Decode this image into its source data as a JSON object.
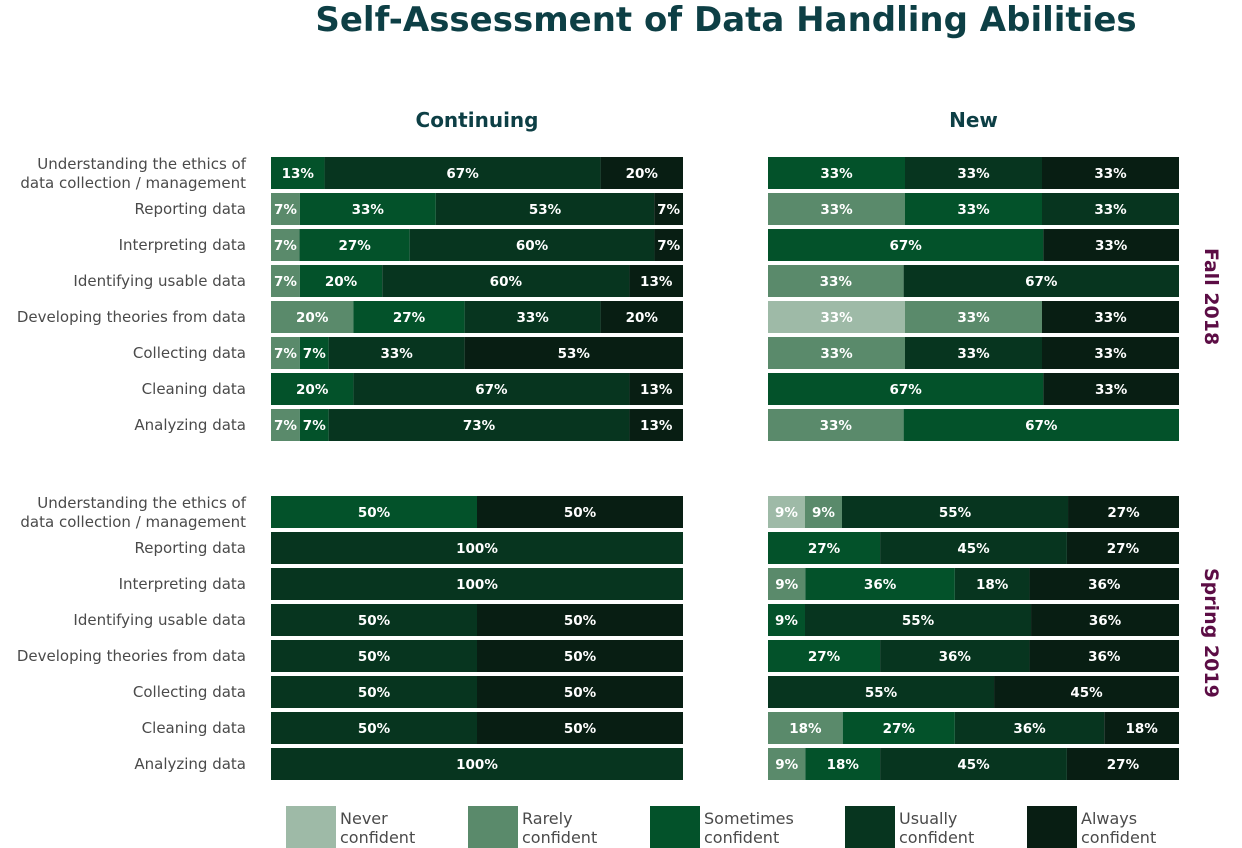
{
  "title": "Self-Assessment of Data Handling Abilities",
  "columns": [
    "Continuing",
    "New"
  ],
  "periods": [
    "Fall 2018",
    "Spring 2019"
  ],
  "legend": [
    {
      "label": "Never\nconfident",
      "color": "#9ebaa7"
    },
    {
      "label": "Rarely\nconfident",
      "color": "#5a8a6b"
    },
    {
      "label": "Sometimes\nconfident",
      "color": "#03522a"
    },
    {
      "label": "Usually\nconfident",
      "color": "#07351f"
    },
    {
      "label": "Always\nconfident",
      "color": "#081e13"
    }
  ],
  "chart_data": {
    "type": "bar",
    "stacked": true,
    "orientation": "horizontal",
    "categories": [
      "Understanding the ethics of\ndata collection / management",
      "Reporting data",
      "Interpreting data",
      "Identifying usable data",
      "Developing theories from data",
      "Collecting data",
      "Cleaning data",
      "Analyzing data"
    ],
    "series_names": [
      "Never confident",
      "Rarely confident",
      "Sometimes confident",
      "Usually confident",
      "Always confident"
    ],
    "panels": [
      {
        "period": "Fall 2018",
        "column": "Continuing",
        "rows": [
          [
            0,
            0,
            13,
            67,
            20
          ],
          [
            0,
            7,
            33,
            53,
            7
          ],
          [
            0,
            7,
            27,
            60,
            7
          ],
          [
            0,
            7,
            20,
            60,
            13
          ],
          [
            0,
            20,
            27,
            33,
            20
          ],
          [
            0,
            7,
            7,
            33,
            53
          ],
          [
            0,
            0,
            20,
            67,
            13
          ],
          [
            0,
            7,
            7,
            73,
            13
          ]
        ]
      },
      {
        "period": "Fall 2018",
        "column": "New",
        "rows": [
          [
            0,
            0,
            33,
            33,
            33
          ],
          [
            0,
            33,
            33,
            33,
            0
          ],
          [
            0,
            0,
            67,
            0,
            33
          ],
          [
            0,
            33,
            0,
            67,
            0
          ],
          [
            33,
            33,
            0,
            0,
            33
          ],
          [
            0,
            33,
            0,
            33,
            33
          ],
          [
            0,
            0,
            67,
            0,
            33
          ],
          [
            0,
            33,
            67,
            0,
            0
          ]
        ]
      },
      {
        "period": "Spring 2019",
        "column": "Continuing",
        "rows": [
          [
            0,
            0,
            50,
            0,
            50
          ],
          [
            0,
            0,
            0,
            100,
            0
          ],
          [
            0,
            0,
            0,
            100,
            0
          ],
          [
            0,
            0,
            0,
            50,
            50
          ],
          [
            0,
            0,
            0,
            50,
            50
          ],
          [
            0,
            0,
            0,
            50,
            50
          ],
          [
            0,
            0,
            0,
            50,
            50
          ],
          [
            0,
            0,
            0,
            100,
            0
          ]
        ]
      },
      {
        "period": "Spring 2019",
        "column": "New",
        "rows": [
          [
            9,
            9,
            0,
            55,
            27
          ],
          [
            0,
            0,
            27,
            45,
            27
          ],
          [
            0,
            9,
            36,
            18,
            36
          ],
          [
            0,
            0,
            9,
            55,
            36
          ],
          [
            0,
            0,
            27,
            36,
            36
          ],
          [
            0,
            0,
            0,
            55,
            45
          ],
          [
            0,
            18,
            27,
            36,
            18
          ],
          [
            0,
            9,
            18,
            45,
            27
          ]
        ]
      }
    ],
    "xlim": [
      0,
      100
    ],
    "value_suffix": "%"
  }
}
